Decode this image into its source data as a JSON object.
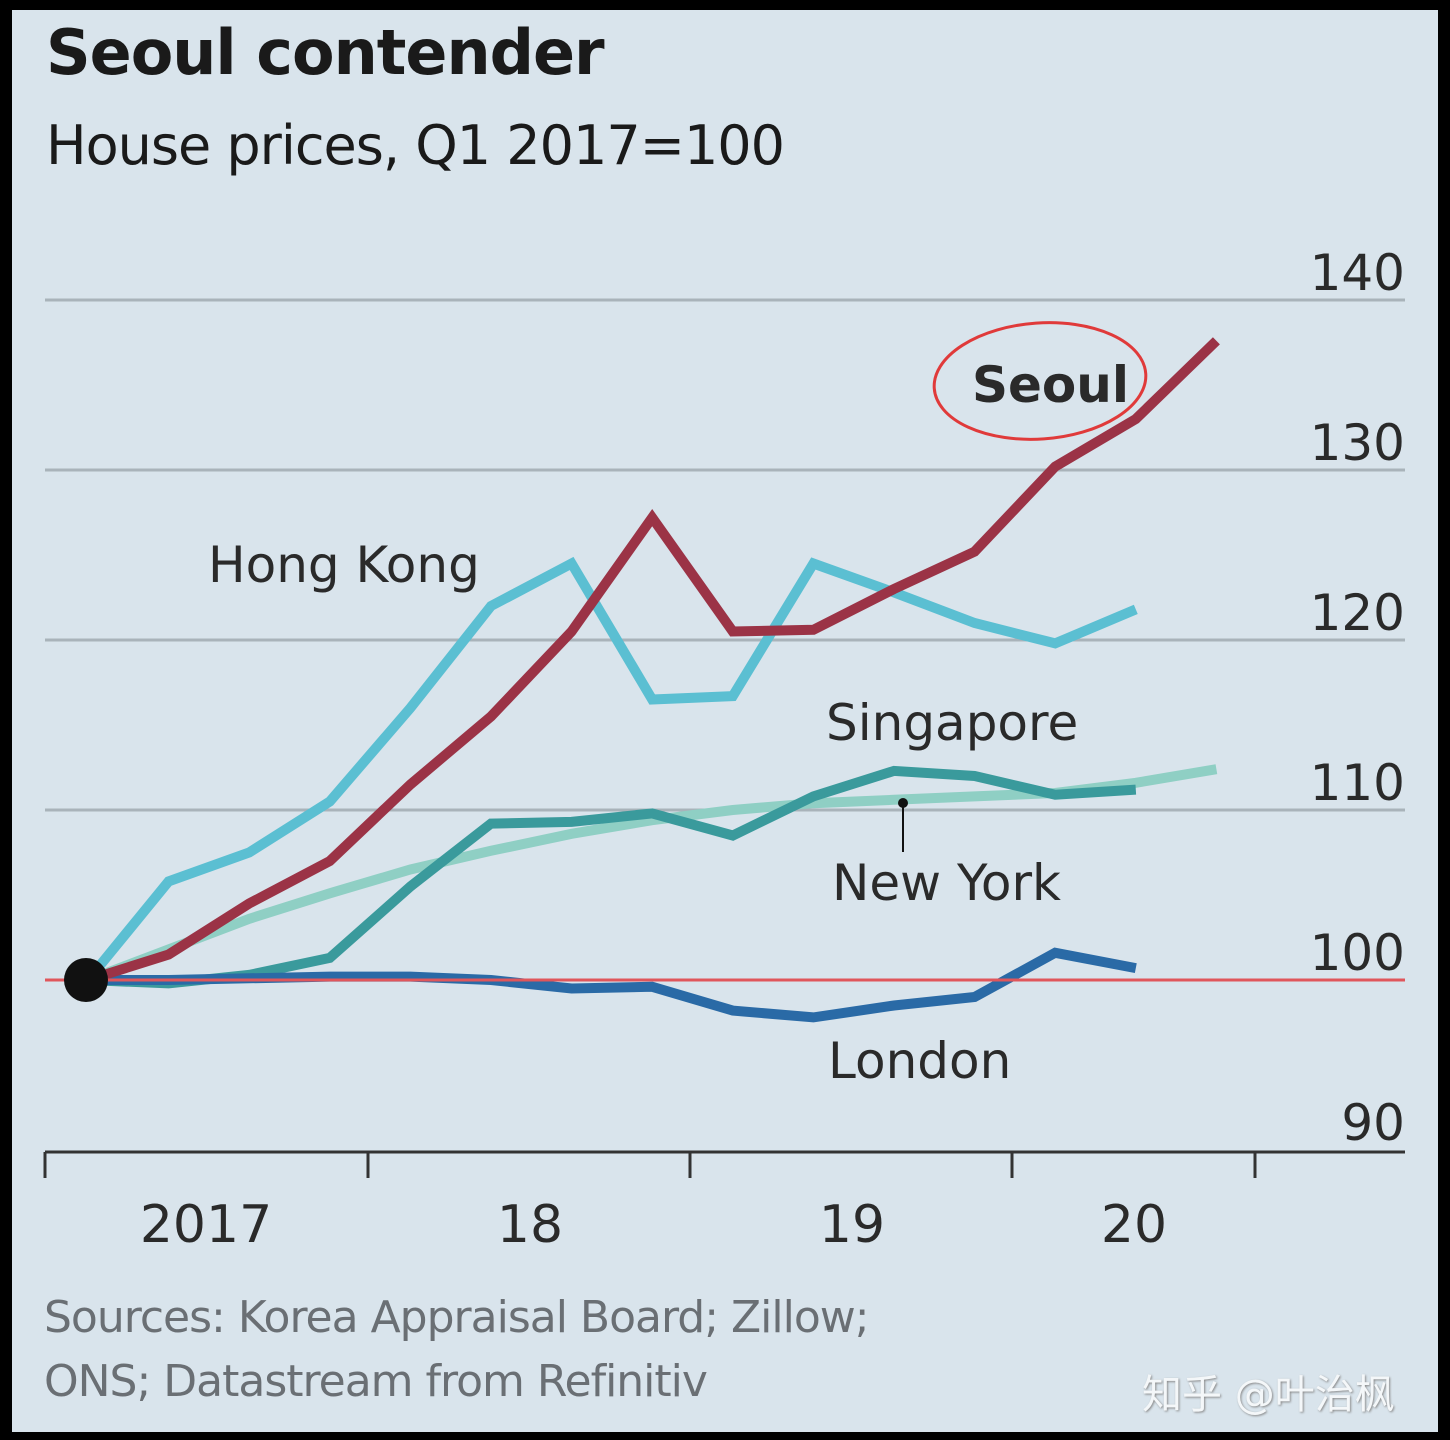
{
  "title": "Seoul contender",
  "subtitle": "House prices, Q1 2017=100",
  "source_lines": [
    "Sources: Korea Appraisal Board; Zillow;",
    "ONS; Datastream from Refinitiv"
  ],
  "watermark": "知乎 @叶治枫",
  "chart_data": {
    "type": "line",
    "title": "Seoul contender",
    "subtitle": "House prices, Q1 2017=100",
    "xlabel": "",
    "ylabel": "",
    "ylim": [
      90,
      140
    ],
    "yticks": [
      90,
      100,
      110,
      120,
      130,
      140
    ],
    "ytick_labels": [
      "90",
      "100",
      "110",
      "120",
      "130",
      "140"
    ],
    "xticks": [
      "2017",
      "18",
      "19",
      "20"
    ],
    "x_quarters": [
      "2017Q1",
      "2017Q2",
      "2017Q3",
      "2017Q4",
      "2018Q1",
      "2018Q2",
      "2018Q3",
      "2018Q4",
      "2019Q1",
      "2019Q2",
      "2019Q3",
      "2019Q4",
      "2020Q1",
      "2020Q2",
      "2020Q3"
    ],
    "x_range_quarters": [
      0,
      16
    ],
    "baseline": 100,
    "grid": true,
    "series": [
      {
        "name": "Hong Kong",
        "color": "#5bbfd2",
        "values": [
          100,
          105.8,
          107.5,
          110.5,
          116,
          122,
          124.5,
          116.5,
          116.7,
          124.5,
          122.8,
          121,
          119.8,
          121.8
        ]
      },
      {
        "name": "Seoul",
        "color": "#9b3346",
        "values": [
          100,
          101.5,
          104.5,
          107,
          111.5,
          115.5,
          120.5,
          127.2,
          120.5,
          120.6,
          123,
          125.2,
          130.2,
          133,
          137.6
        ]
      },
      {
        "name": "Singapore",
        "color": "#3a9a9c",
        "values": [
          100,
          99.8,
          100.3,
          101.3,
          105.5,
          109.2,
          109.3,
          109.8,
          108.5,
          110.8,
          112.3,
          112,
          110.9,
          111.2
        ]
      },
      {
        "name": "New York",
        "color": "#8fcfc4",
        "values": [
          100,
          101.8,
          103.6,
          105.1,
          106.5,
          107.6,
          108.6,
          109.4,
          110,
          110.4,
          110.6,
          110.8,
          111,
          111.6,
          112.4
        ]
      },
      {
        "name": "London",
        "color": "#2a6aa6",
        "values": [
          100,
          100,
          100.1,
          100.2,
          100.2,
          100,
          99.5,
          99.6,
          98.2,
          97.8,
          98.5,
          99,
          101.6,
          100.7
        ]
      }
    ],
    "annotations": [
      {
        "text": "Seoul",
        "note": "circled in red"
      },
      {
        "text": "Hong Kong"
      },
      {
        "text": "Singapore"
      },
      {
        "text": "New York",
        "note": "with leader line"
      },
      {
        "text": "London"
      }
    ],
    "legend": "inline labels"
  }
}
